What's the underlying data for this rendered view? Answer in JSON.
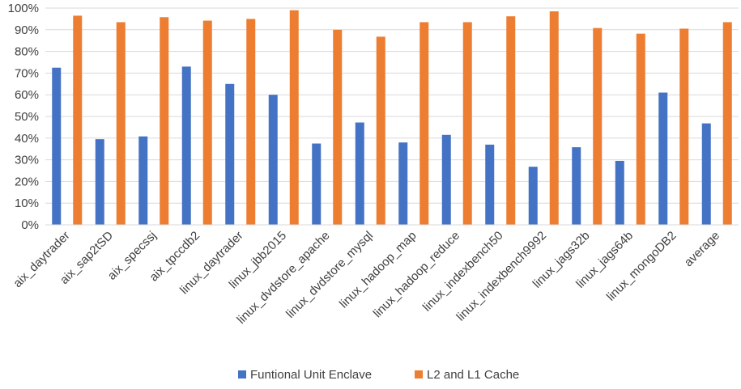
{
  "chart_data": {
    "type": "bar",
    "categories": [
      "aix_daytrader",
      "aix_sap2tSD",
      "aix_specssj",
      "aix_tpccdb2",
      "linux_daytrader",
      "linux_jbb2015",
      "linux_dvdstore_apache",
      "linux_dvdstore_mysql",
      "linux_hadoop_map",
      "linux_hadoop_reduce",
      "linux_indexbench50",
      "linux_indexbench9992",
      "linux_jags32b",
      "linux_jags64b",
      "linux_mongoDB2",
      "average"
    ],
    "series": [
      {
        "name": "Funtional Unit Enclave",
        "color": "#4472C4",
        "values": [
          72.5,
          39.5,
          40.8,
          73,
          65,
          60,
          37.5,
          47.2,
          38,
          41.5,
          37,
          26.8,
          35.8,
          29.5,
          61,
          46.8
        ]
      },
      {
        "name": "L2 and L1 Cache",
        "color": "#ED7D31",
        "values": [
          96.5,
          93.5,
          95.8,
          94.2,
          95,
          99,
          90,
          86.8,
          93.5,
          93.5,
          96.2,
          98.5,
          90.8,
          88.2,
          90.5,
          93.5
        ]
      }
    ],
    "yticks": [
      "0%",
      "10%",
      "20%",
      "30%",
      "40%",
      "50%",
      "60%",
      "70%",
      "80%",
      "90%",
      "100%"
    ],
    "ylim": [
      0,
      100
    ],
    "grid": true,
    "legend": "bottom",
    "title": "",
    "xlabel": "",
    "ylabel": ""
  }
}
